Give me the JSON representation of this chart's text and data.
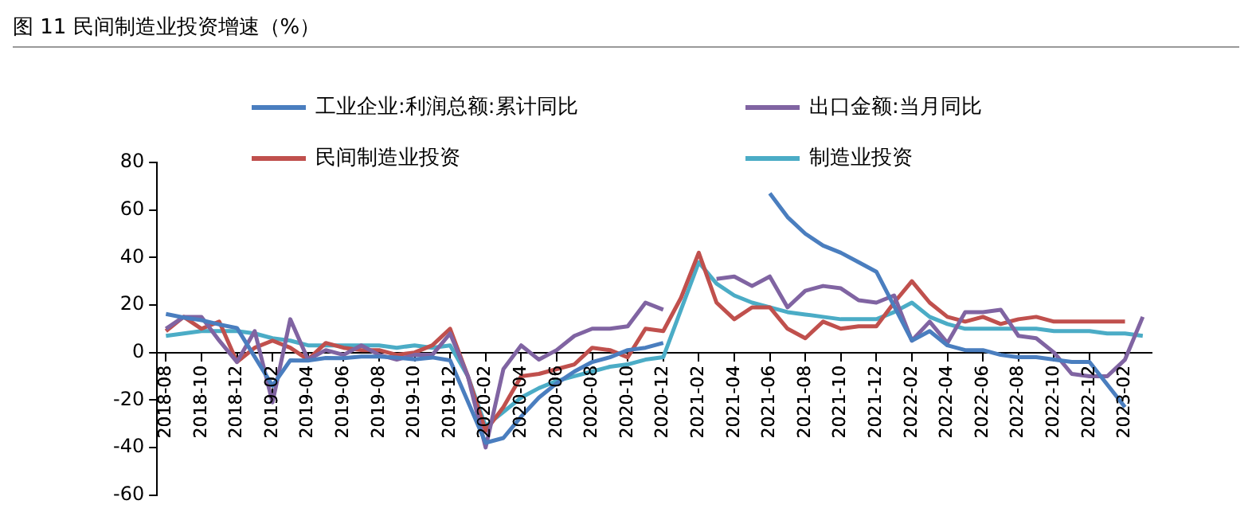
{
  "chart_data": {
    "type": "line",
    "title": "图 11 民间制造业投资增速（%）",
    "categories": [
      "2018-08",
      null,
      "2018-10",
      null,
      "2018-12",
      null,
      "2019-02",
      null,
      "2019-04",
      null,
      "2019-06",
      null,
      "2019-08",
      null,
      "2019-10",
      null,
      "2019-12",
      null,
      "2020-02",
      null,
      "2020-04",
      null,
      "2020-06",
      null,
      "2020-08",
      null,
      "2020-10",
      null,
      "2020-12",
      null,
      "2021-02",
      null,
      "2021-04",
      null,
      "2021-06",
      null,
      "2021-08",
      null,
      "2021-10",
      null,
      "2021-12",
      null,
      "2022-02",
      null,
      "2022-04",
      null,
      "2022-06",
      null,
      "2022-08",
      null,
      "2022-10",
      null,
      "2022-12",
      null,
      "2023-02",
      null
    ],
    "series": [
      {
        "name": "工业企业:利润总额:累计同比",
        "color": "#4a7ebf",
        "values": [
          16.2,
          14.7,
          13.6,
          11.8,
          10.3,
          null,
          -14,
          -3.3,
          -3.4,
          -2.3,
          -2.4,
          -1.7,
          -1.7,
          -2.1,
          -2.9,
          -2.1,
          -3.3,
          null,
          -38,
          -36,
          -27,
          -19,
          -13,
          -8,
          -4,
          -2,
          1,
          2,
          4,
          null,
          null,
          null,
          null,
          null,
          67,
          57,
          50,
          45,
          42,
          38,
          34,
          null,
          5,
          9,
          3,
          1,
          1,
          -1,
          -2,
          -2,
          -3,
          -4,
          -4,
          null,
          -23,
          null
        ]
      },
      {
        "name": "出口金额:当月同比",
        "color": "#8064a2",
        "values": [
          10,
          15,
          15,
          5,
          -4,
          9,
          -21,
          14,
          -3,
          1,
          -1,
          3,
          -1,
          -3,
          -1,
          -1,
          8,
          -10,
          -40,
          -7,
          3,
          -3,
          1,
          7,
          10,
          10,
          11,
          21,
          18,
          null,
          null,
          31,
          32,
          28,
          32,
          19,
          26,
          28,
          27,
          22,
          21,
          24,
          5,
          13,
          4,
          17,
          17,
          18,
          7,
          6,
          0,
          -9,
          -10,
          -10,
          -3,
          15
        ]
      },
      {
        "name": "民间制造业投资",
        "color": "#c0504d",
        "values": [
          9,
          15,
          10,
          13,
          -4,
          2,
          5,
          2,
          -3,
          4,
          2,
          1,
          1,
          -1,
          0,
          3,
          10,
          -10,
          -33,
          -23,
          -10,
          -9,
          -7,
          -5,
          2,
          1,
          -2,
          10,
          9,
          23,
          42,
          21,
          14,
          19,
          19,
          10,
          6,
          13,
          10,
          11,
          11,
          21,
          30,
          21,
          15,
          13,
          15,
          12,
          14,
          15,
          13,
          13,
          13,
          13,
          13,
          null
        ]
      },
      {
        "name": "制造业投资",
        "color": "#4bacc6",
        "values": [
          7,
          8,
          9,
          9,
          9,
          8,
          6,
          5,
          3,
          3,
          3,
          3,
          3,
          2,
          3,
          2,
          3,
          -10,
          -31,
          -25,
          -19,
          -15,
          -12,
          -10,
          -8,
          -6,
          -5,
          -3,
          -2,
          18,
          38,
          29,
          24,
          21,
          19,
          17,
          16,
          15,
          14,
          14,
          14,
          17,
          21,
          15,
          12,
          10,
          10,
          10,
          10,
          10,
          9,
          9,
          9,
          8,
          8,
          7
        ]
      }
    ],
    "ylim": [
      -60,
      80
    ],
    "yticks": [
      -60,
      -40,
      -20,
      0,
      20,
      40,
      60,
      80
    ],
    "grid": false,
    "legend": "top",
    "marker": "none",
    "line_style": "solid"
  }
}
